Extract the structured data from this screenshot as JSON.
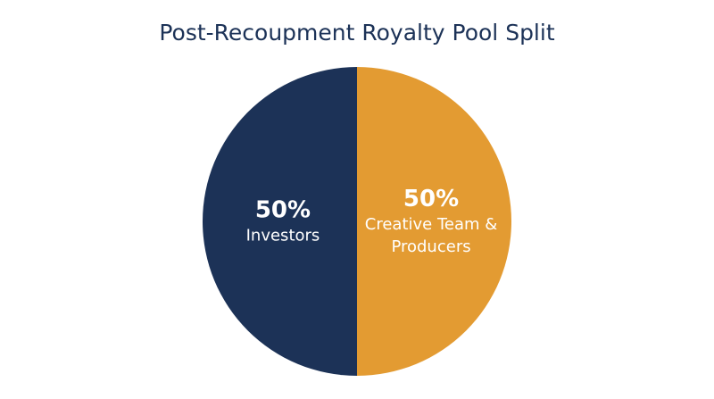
{
  "chart_data": {
    "type": "pie",
    "title": "Post-Recoupment Royalty Pool Split",
    "categories": [
      "Creative Team & Producers",
      "Investors"
    ],
    "values": [
      50,
      50
    ],
    "value_labels": [
      "50%",
      "50%"
    ],
    "colors": [
      "#e39b32",
      "#1c3257"
    ]
  }
}
